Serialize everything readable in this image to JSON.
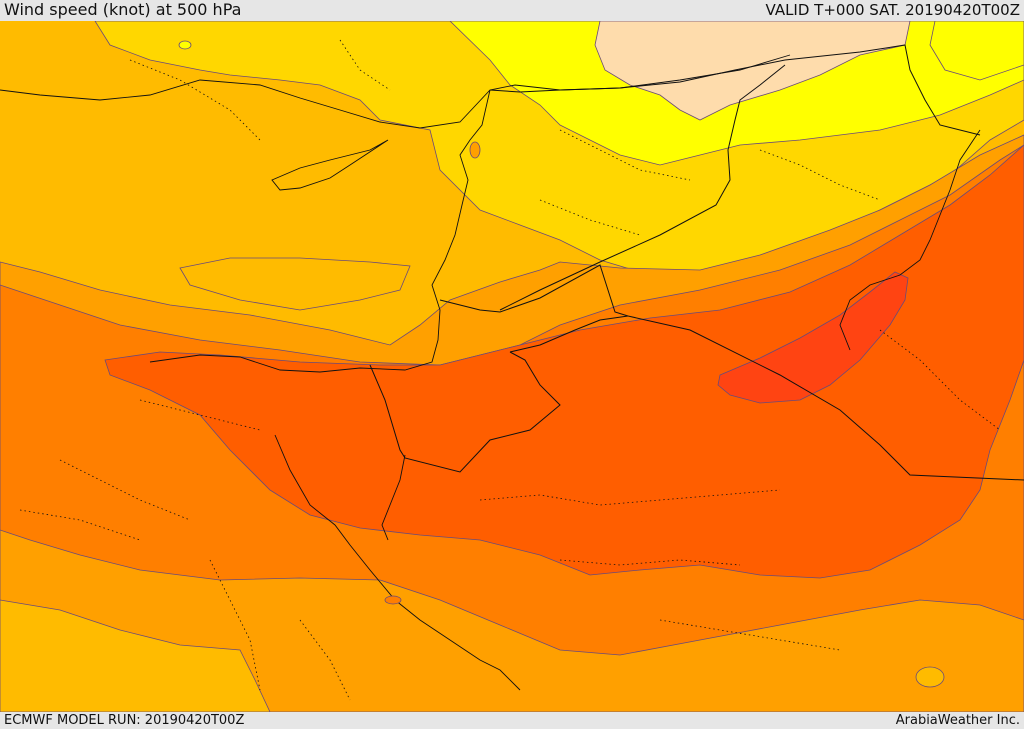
{
  "header": {
    "title": "Wind speed (knot) at 500 hPa",
    "valid": "VALID T+000 SAT. 20190420T00Z"
  },
  "footer": {
    "model_run": "ECMWF MODEL RUN: 20190420T00Z",
    "credit": "ArabiaWeather Inc."
  },
  "colors": {
    "band_very_low": "#fedcac",
    "band_low": "#ffff00",
    "band_light": "#ffd700",
    "band_medium": "#ffbb00",
    "band_moderate": "#ffa000",
    "band_strong": "#ff7f00",
    "band_very_strong": "#ff5e00",
    "band_max": "#ff4412",
    "contour": "#6a4a7a",
    "border": "#111111"
  }
}
